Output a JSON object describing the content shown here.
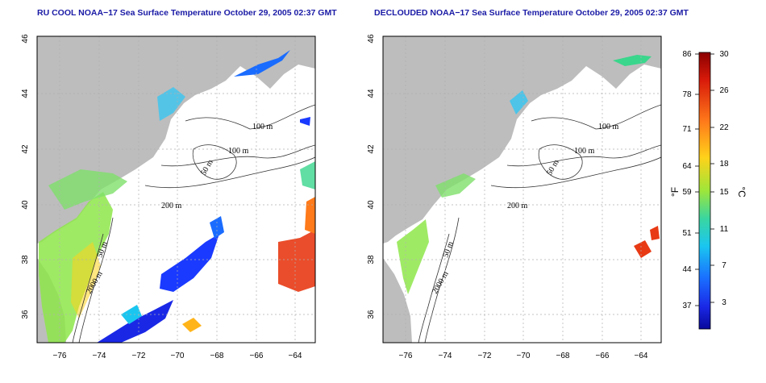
{
  "panels": [
    {
      "title": "RU COOL NOAA−17 Sea Surface Temperature October 29, 2005 02:37 GMT",
      "contours": [
        "100 m",
        "100 m",
        "50 m",
        "200 m",
        "50 m",
        "2000 m"
      ]
    },
    {
      "title": "DECLOUDED NOAA−17 Sea Surface Temperature October 29, 2005 02:37 GMT",
      "contours": [
        "100 m",
        "100 m",
        "50 m",
        "200 m",
        "50 m",
        "2000 m"
      ]
    }
  ],
  "axes": {
    "x_ticks": [
      "−76",
      "−74",
      "−72",
      "−70",
      "−68",
      "−66",
      "−64"
    ],
    "y_ticks": [
      "36",
      "38",
      "40",
      "42",
      "44",
      "46"
    ]
  },
  "colorbar": {
    "unit_f": "°F",
    "unit_c": "°C",
    "f_ticks": [
      "86",
      "78",
      "71",
      "64",
      "59",
      "51",
      "44",
      "37"
    ],
    "c_ticks": [
      "30",
      "26",
      "22",
      "18",
      "15",
      "11",
      "7",
      "3"
    ],
    "colors": [
      "#b30000",
      "#e83a14",
      "#ff8a1a",
      "#ffd21a",
      "#a6e63a",
      "#3ad68c",
      "#1ad6e6",
      "#1a8cff",
      "#1a3aff",
      "#0a0aa0"
    ]
  }
}
